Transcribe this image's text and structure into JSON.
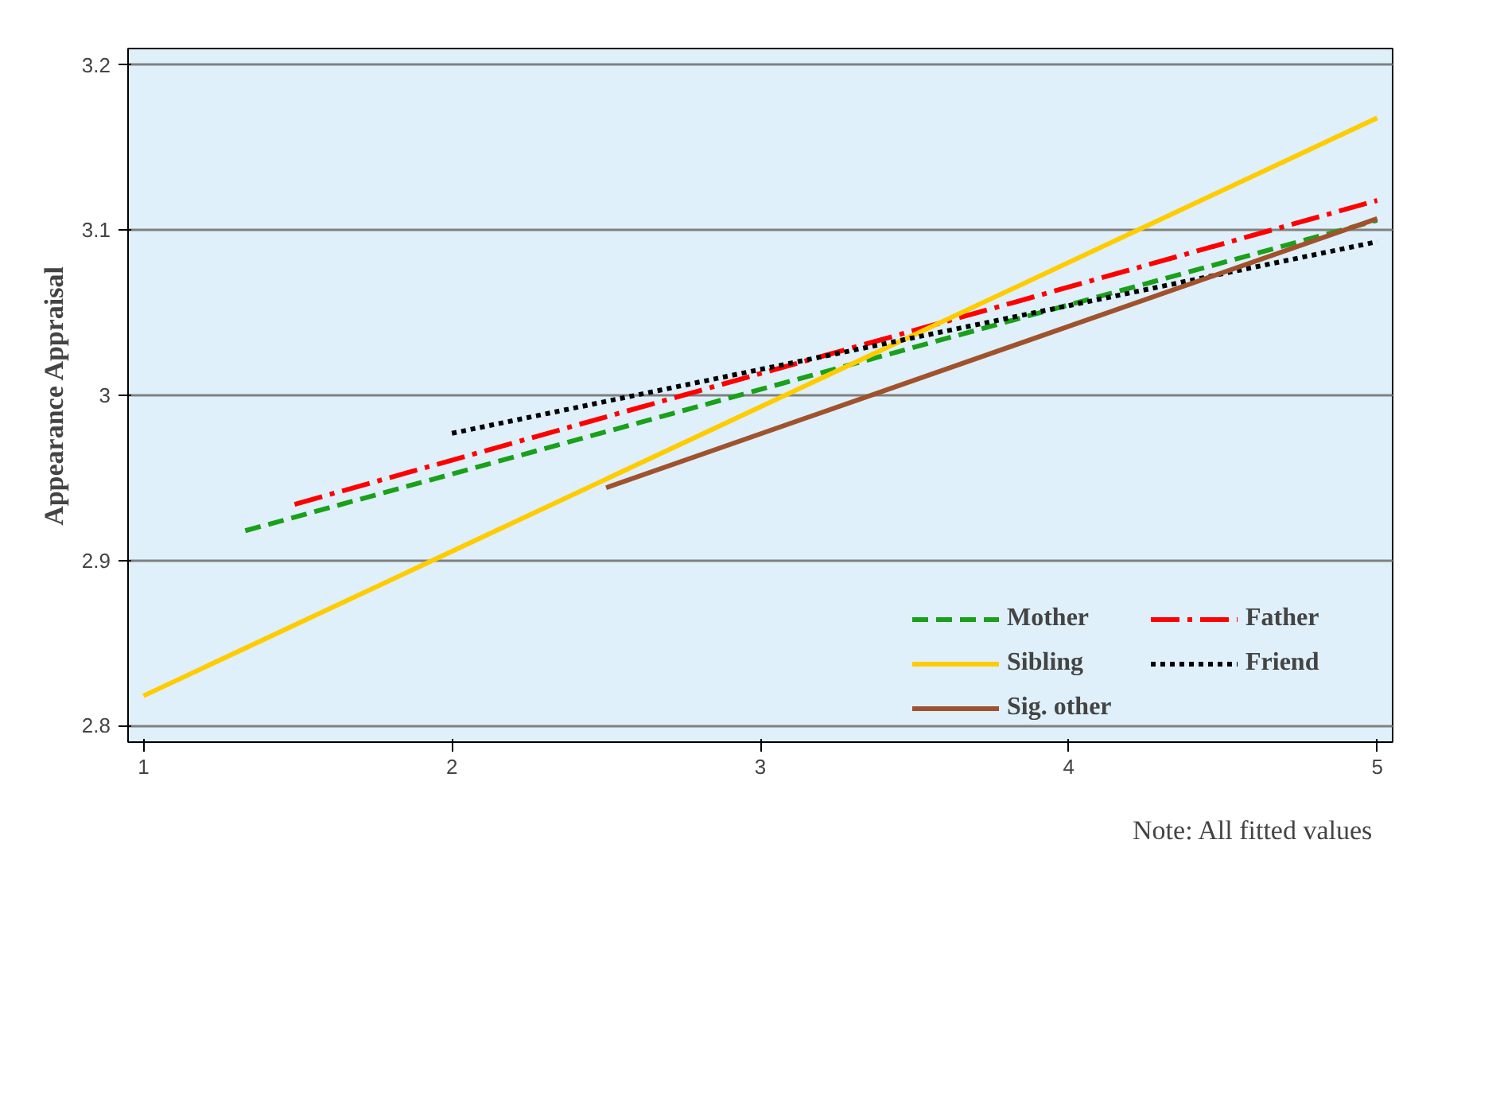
{
  "chart_data": {
    "type": "line",
    "ylabel": "Appearance Appraisal",
    "xlim": [
      0.95,
      5.05
    ],
    "xticks": [
      1,
      2,
      3,
      4,
      5
    ],
    "ylim": [
      2.79,
      3.21
    ],
    "yticks": [
      2.8,
      2.9,
      3,
      3.1,
      3.2
    ],
    "grid": "y",
    "legend": "bottom right",
    "marker": "none",
    "series": [
      {
        "name": "Mother",
        "color": "#1aa01a",
        "line_style": "dashed",
        "x": [
          1.33,
          5
        ],
        "values": [
          2.918,
          3.106
        ]
      },
      {
        "name": "Father",
        "color": "#ff0000",
        "line_style": "dashdot",
        "x": [
          1.49,
          5
        ],
        "values": [
          2.934,
          3.118
        ]
      },
      {
        "name": "Sibling",
        "color": "#ffcc00",
        "line_style": "solid",
        "x": [
          1,
          5
        ],
        "values": [
          2.818,
          3.168
        ]
      },
      {
        "name": "Friend",
        "color": "#000000",
        "line_style": "dotted",
        "x": [
          2,
          5
        ],
        "values": [
          2.977,
          3.093
        ]
      },
      {
        "name": "Sig. other",
        "color": "#a0522d",
        "line_style": "solid",
        "x": [
          2.5,
          5
        ],
        "values": [
          2.944,
          3.107
        ]
      }
    ],
    "annotations": [
      "Note: All fitted values"
    ]
  }
}
